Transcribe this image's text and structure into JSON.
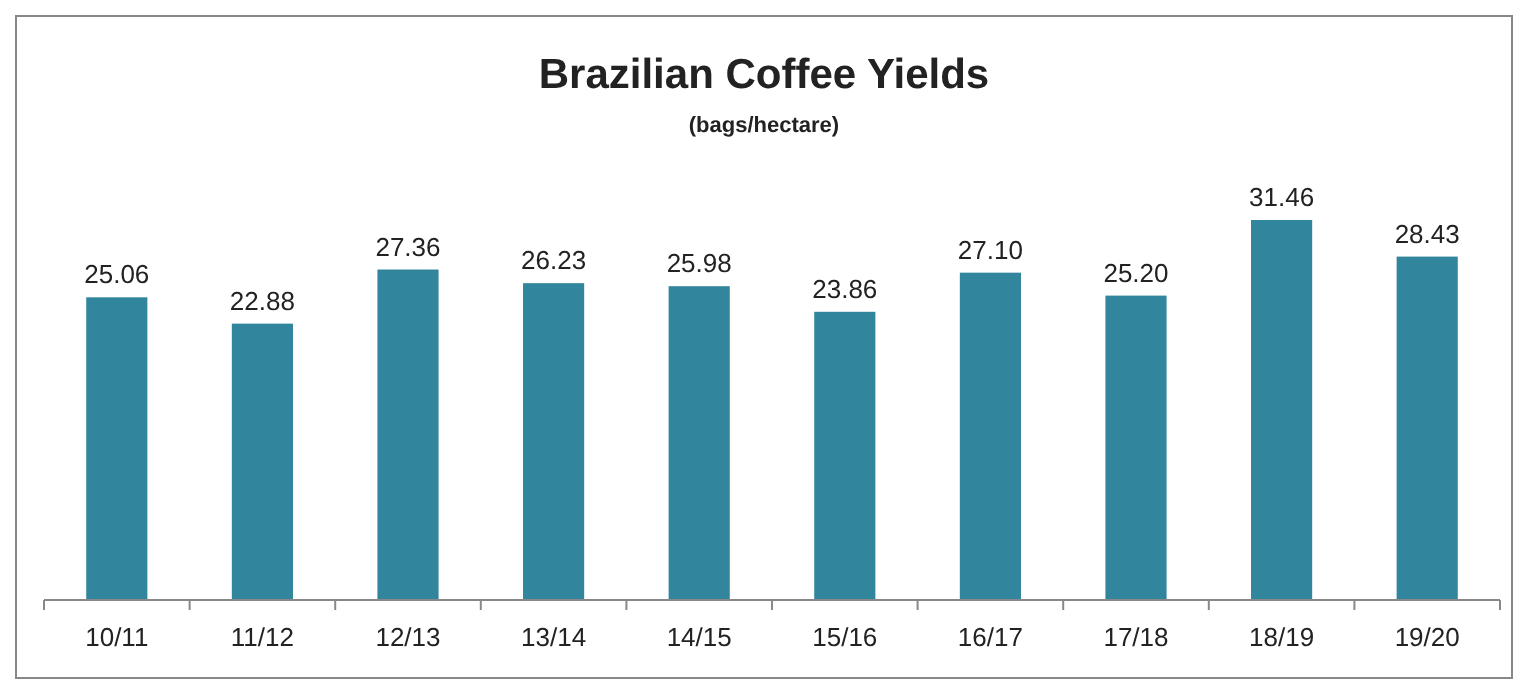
{
  "chart_data": {
    "type": "bar",
    "title": "Brazilian Coffee Yields",
    "subtitle": "(bags/hectare)",
    "categories": [
      "10/11",
      "11/12",
      "12/13",
      "13/14",
      "14/15",
      "15/16",
      "16/17",
      "17/18",
      "18/19",
      "19/20"
    ],
    "values": [
      25.06,
      22.88,
      27.36,
      26.23,
      25.98,
      23.86,
      27.1,
      25.2,
      31.46,
      28.43
    ],
    "value_labels": [
      "25.06",
      "22.88",
      "27.36",
      "26.23",
      "25.98",
      "23.86",
      "27.10",
      "25.20",
      "31.46",
      "28.43"
    ],
    "color": "#31859c",
    "data_labels": true
  }
}
